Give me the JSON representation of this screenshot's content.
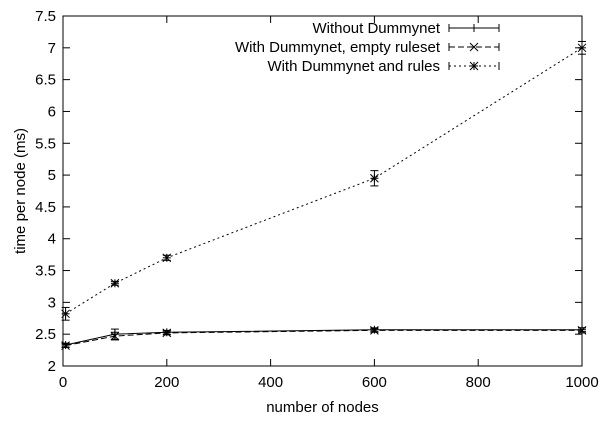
{
  "chart_data": {
    "type": "line",
    "title": "",
    "xlabel": "number of nodes",
    "ylabel": "time per node (ms)",
    "xlim": [
      0,
      1000
    ],
    "ylim": [
      2,
      7.5
    ],
    "xticks": [
      0,
      200,
      400,
      600,
      800,
      1000
    ],
    "yticks": [
      2,
      2.5,
      3,
      3.5,
      4,
      4.5,
      5,
      5.5,
      6,
      6.5,
      7,
      7.5
    ],
    "xtick_labels": [
      "0",
      "200",
      "400",
      "600",
      "800",
      "1000"
    ],
    "ytick_labels": [
      "2",
      "2.5",
      "3",
      "3.5",
      "4",
      "4.5",
      "5",
      "5.5",
      "6",
      "6.5",
      "7",
      "7.5"
    ],
    "grid": false,
    "legend_position": "top-right",
    "series": [
      {
        "name": "Without Dummynet",
        "marker": "plus",
        "dash": "solid",
        "x": [
          5,
          100,
          200,
          600,
          1000
        ],
        "y": [
          2.33,
          2.5,
          2.53,
          2.57,
          2.57
        ],
        "err": [
          0.03,
          0.08,
          0.03,
          0.03,
          0.03
        ]
      },
      {
        "name": "With Dummynet, empty ruleset",
        "marker": "cross",
        "dash": "dashed",
        "x": [
          5,
          100,
          200,
          600,
          1000
        ],
        "y": [
          2.32,
          2.47,
          2.52,
          2.56,
          2.56
        ],
        "err": [
          0.03,
          0.06,
          0.03,
          0.03,
          0.04
        ]
      },
      {
        "name": "With Dummynet and rules",
        "marker": "star",
        "dash": "dotted",
        "x": [
          5,
          100,
          200,
          600,
          1000
        ],
        "y": [
          2.82,
          3.3,
          3.7,
          4.95,
          7.0
        ],
        "err": [
          0.1,
          0.03,
          0.04,
          0.12,
          0.1
        ]
      }
    ]
  }
}
